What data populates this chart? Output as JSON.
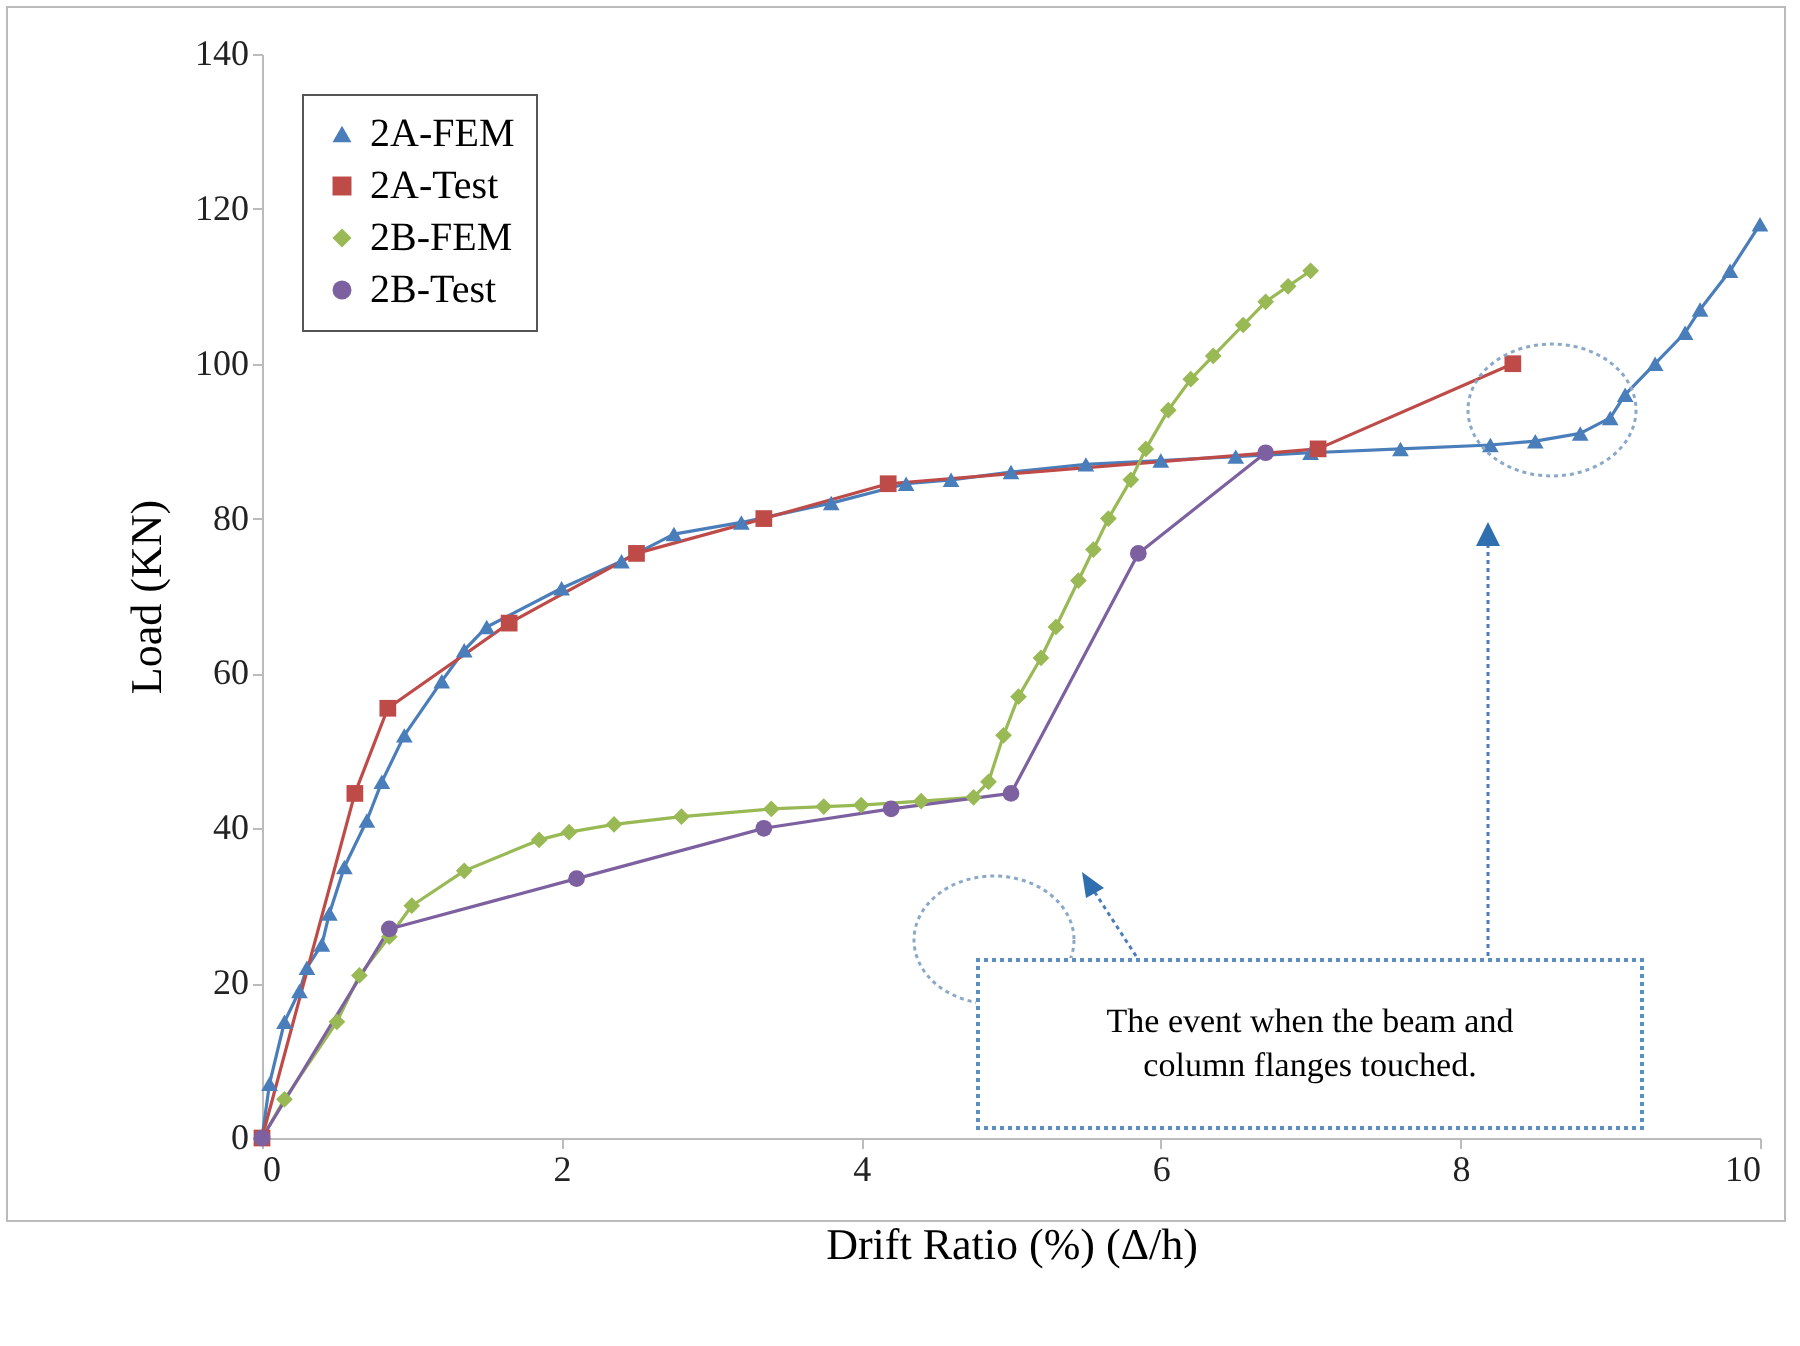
{
  "chart_data": {
    "type": "line",
    "xlabel": "Drift Ratio (%) (Δ/h)",
    "ylabel": "Load (KN)",
    "xlim": [
      0,
      10
    ],
    "ylim": [
      0,
      140
    ],
    "xticks": [
      0,
      2,
      4,
      6,
      8,
      10
    ],
    "yticks": [
      0,
      20,
      40,
      60,
      80,
      100,
      120,
      140
    ],
    "grid": false,
    "legend": "top left",
    "line_style": "solid",
    "annotations": [
      "The event when the beam and column flanges touched."
    ],
    "series": [
      {
        "name": "2A-FEM",
        "color": "#4a7ebb",
        "marker": "triangle",
        "x": [
          0,
          0.05,
          0.15,
          0.25,
          0.3,
          0.4,
          0.45,
          0.55,
          0.7,
          0.8,
          0.95,
          1.2,
          1.35,
          1.5,
          2.0,
          2.4,
          2.75,
          3.2,
          3.8,
          4.3,
          4.6,
          5.0,
          5.5,
          6.0,
          6.5,
          7.0,
          7.6,
          8.2,
          8.5,
          8.8,
          9.0,
          9.1,
          9.3,
          9.5,
          9.6,
          9.8,
          10.0
        ],
        "values": [
          0,
          7,
          15,
          19,
          22,
          25,
          29,
          35,
          41,
          46,
          52,
          59,
          63,
          66,
          71,
          74.5,
          78,
          79.5,
          82,
          84.5,
          85,
          86,
          87,
          87.5,
          88,
          88.5,
          89,
          89.5,
          90,
          91,
          93,
          96,
          100,
          104,
          107,
          112,
          118
        ]
      },
      {
        "name": "2A-Test",
        "color": "#be4b48",
        "marker": "square",
        "x": [
          0,
          0.62,
          0.84,
          1.65,
          2.5,
          3.35,
          4.18,
          7.05,
          8.35
        ],
        "values": [
          0,
          44.5,
          55.5,
          66.5,
          75.5,
          80,
          84.5,
          89,
          100
        ]
      },
      {
        "name": "2B-FEM",
        "color": "#98b954",
        "marker": "diamond",
        "x": [
          0,
          0.15,
          0.5,
          0.65,
          0.85,
          1.0,
          1.35,
          1.85,
          2.05,
          2.35,
          2.8,
          3.4,
          3.75,
          4.0,
          4.4,
          4.75,
          4.85,
          4.95,
          5.05,
          5.2,
          5.3,
          5.45,
          5.55,
          5.65,
          5.8,
          5.9,
          6.05,
          6.2,
          6.35,
          6.55,
          6.7,
          6.85,
          7.0
        ],
        "values": [
          0,
          5,
          15,
          21,
          26,
          30,
          34.5,
          38.5,
          39.5,
          40.5,
          41.5,
          42.5,
          42.8,
          43,
          43.5,
          44,
          46,
          52,
          57,
          62,
          66,
          72,
          76,
          80,
          85,
          89,
          94,
          98,
          101,
          105,
          108,
          110,
          112
        ]
      },
      {
        "name": "2B-Test",
        "color": "#7d60a0",
        "marker": "circle",
        "x": [
          0,
          0.85,
          2.1,
          3.35,
          4.2,
          5.0,
          5.85,
          6.7
        ],
        "values": [
          0,
          27,
          33.5,
          40,
          42.5,
          44.5,
          75.5,
          88.5
        ]
      }
    ]
  }
}
